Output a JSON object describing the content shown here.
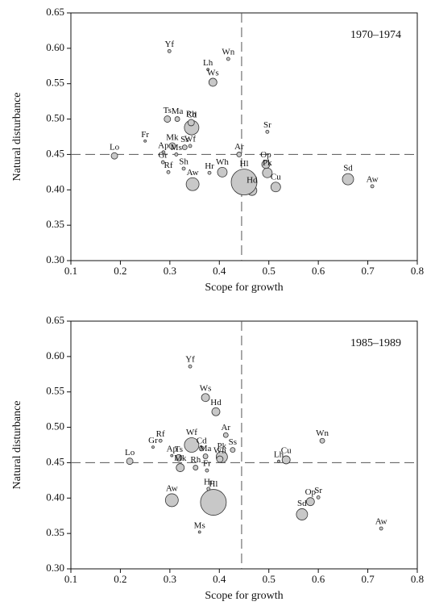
{
  "chart_data": [
    {
      "type": "scatter",
      "label": "1970–1974",
      "xlabel": "Scope for growth",
      "ylabel": "Natural disturbance",
      "xlim": [
        0.1,
        0.8
      ],
      "ylim": [
        0.3,
        0.65
      ],
      "xticks": [
        0.1,
        0.2,
        0.3,
        0.4,
        0.5,
        0.6,
        0.7,
        0.8
      ],
      "yticks": [
        {
          "value": 0.3,
          "label": "0.30"
        },
        {
          "value": 0.35,
          "label": "0.35"
        },
        {
          "value": 0.4,
          "label": "0.40"
        },
        {
          "value": 0.45,
          "label": "0.45"
        },
        {
          "value": 0.5,
          "label": "0.50"
        },
        {
          "value": 0.55,
          "label": "0.55"
        },
        {
          "value": 0.6,
          "label": "0.60"
        },
        {
          "value": 0.65,
          "label": "0.65"
        }
      ],
      "vline": 0.445,
      "hline": 0.45,
      "color": "#c8c8c8",
      "labels": [
        "Yf",
        "Wn",
        "Lh",
        "Ws",
        "Ts",
        "Ma",
        "Rh",
        "Cd",
        "Sr",
        "Fr",
        "Mk",
        "Ss",
        "Wf",
        "Lo",
        "Ap",
        "Ms",
        "Ar",
        "Op",
        "Gr",
        "Sh",
        "Rf",
        "Hr",
        "Wh",
        "Pk",
        "Aw",
        "Hl",
        "Hd",
        "Cu",
        "Sd",
        "Aw"
      ],
      "x": [
        0.299,
        0.418,
        0.377,
        0.387,
        0.295,
        0.315,
        0.343,
        0.344,
        0.497,
        0.25,
        0.305,
        0.33,
        0.341,
        0.188,
        0.287,
        0.313,
        0.44,
        0.494,
        0.286,
        0.328,
        0.297,
        0.38,
        0.406,
        0.497,
        0.346,
        0.45,
        0.466,
        0.514,
        0.66,
        0.709
      ],
      "y": [
        0.596,
        0.585,
        0.57,
        0.552,
        0.5,
        0.5,
        0.495,
        0.488,
        0.482,
        0.469,
        0.462,
        0.46,
        0.462,
        0.448,
        0.453,
        0.45,
        0.45,
        0.436,
        0.439,
        0.43,
        0.425,
        0.424,
        0.425,
        0.424,
        0.408,
        0.411,
        0.399,
        0.404,
        0.415,
        0.405
      ],
      "sizes": [
        2,
        2,
        1.5,
        5,
        4,
        3,
        4,
        9,
        2,
        1.5,
        4,
        3,
        2,
        4,
        2,
        2,
        3,
        5,
        2,
        2,
        2,
        2,
        6,
        6,
        8,
        16,
        6,
        6,
        7,
        2
      ]
    },
    {
      "type": "scatter",
      "label": "1985–1989",
      "xlabel": "Scope for growth",
      "ylabel": "Natural disturbance",
      "xlim": [
        0.1,
        0.8
      ],
      "ylim": [
        0.3,
        0.65
      ],
      "xticks": [
        0.1,
        0.2,
        0.3,
        0.4,
        0.5,
        0.6,
        0.7,
        0.8
      ],
      "yticks": [
        {
          "value": 0.3,
          "label": "0.30"
        },
        {
          "value": 0.35,
          "label": "0.35"
        },
        {
          "value": 0.4,
          "label": "0.40"
        },
        {
          "value": 0.45,
          "label": "0.45"
        },
        {
          "value": 0.5,
          "label": "0.50"
        },
        {
          "value": 0.55,
          "label": "0.55"
        },
        {
          "value": 0.6,
          "label": "0.60"
        },
        {
          "value": 0.65,
          "label": "0.65"
        }
      ],
      "vline": 0.445,
      "hline": 0.45,
      "color": "#c8c8c8",
      "labels": [
        "Yf",
        "Ws",
        "Hd",
        "Ar",
        "Rf",
        "Wn",
        "Gr",
        "Wf",
        "Cd",
        "Ma",
        "Ss",
        "Wh",
        "Pk",
        "Lo",
        "Ap",
        "Ts",
        "Lh",
        "Cu",
        "Mk",
        "Rh",
        "Fr",
        "Hr",
        "Hl",
        "Aw",
        "Op",
        "Sr",
        "Sd",
        "Aw",
        "Ms"
      ],
      "x": [
        0.341,
        0.372,
        0.393,
        0.413,
        0.281,
        0.608,
        0.266,
        0.344,
        0.364,
        0.372,
        0.427,
        0.401,
        0.405,
        0.219,
        0.304,
        0.318,
        0.52,
        0.535,
        0.321,
        0.352,
        0.375,
        0.378,
        0.388,
        0.304,
        0.584,
        0.6,
        0.567,
        0.727,
        0.36
      ],
      "y": [
        0.586,
        0.542,
        0.522,
        0.489,
        0.481,
        0.481,
        0.472,
        0.475,
        0.47,
        0.459,
        0.468,
        0.455,
        0.458,
        0.452,
        0.46,
        0.457,
        0.452,
        0.454,
        0.443,
        0.443,
        0.439,
        0.413,
        0.394,
        0.397,
        0.395,
        0.401,
        0.377,
        0.357,
        0.352
      ],
      "sizes": [
        2,
        5,
        5,
        3,
        2,
        3,
        1.5,
        9,
        3,
        3,
        3,
        4,
        7,
        4,
        1.5,
        4,
        1.5,
        5,
        5,
        3,
        2,
        2,
        16,
        8,
        5,
        2,
        7,
        2,
        1.5
      ]
    }
  ]
}
